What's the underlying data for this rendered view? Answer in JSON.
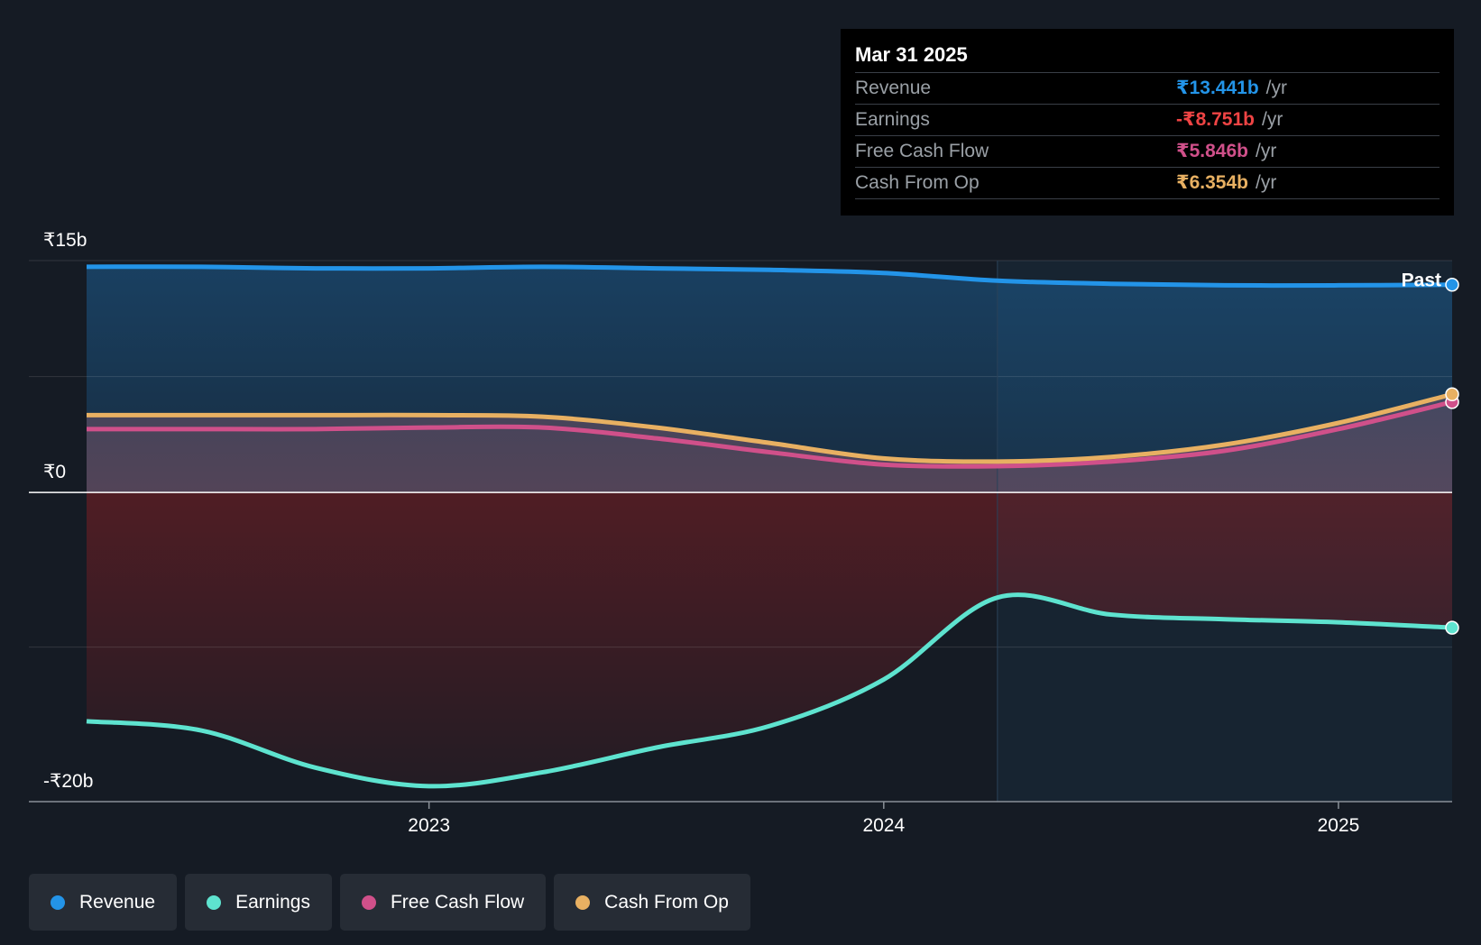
{
  "colors": {
    "revenue": "#2394e8",
    "earnings": "#5ee3cf",
    "fcf": "#d0508a",
    "cfo": "#e8b062",
    "negative": "#ef4444",
    "background": "#151b24"
  },
  "tooltip": {
    "date": "Mar 31 2025",
    "rows": [
      {
        "label": "Revenue",
        "value": "₹13.441b",
        "unit": "/yr"
      },
      {
        "label": "Earnings",
        "value": "-₹8.751b",
        "unit": "/yr"
      },
      {
        "label": "Free Cash Flow",
        "value": "₹5.846b",
        "unit": "/yr"
      },
      {
        "label": "Cash From Op",
        "value": "₹6.354b",
        "unit": "/yr"
      }
    ]
  },
  "past_label": "Past",
  "legend": [
    {
      "label": "Revenue",
      "icon": "revenue-dot"
    },
    {
      "label": "Earnings",
      "icon": "earnings-dot"
    },
    {
      "label": "Free Cash Flow",
      "icon": "fcf-dot"
    },
    {
      "label": "Cash From Op",
      "icon": "cfo-dot"
    }
  ],
  "chart_data": {
    "type": "area",
    "title": "",
    "xlabel": "",
    "ylabel": "",
    "y_unit": "₹b",
    "ylim": [
      -20,
      15
    ],
    "y_ticks": [
      {
        "value": 15,
        "label": "₹15b"
      },
      {
        "value": 0,
        "label": "₹0"
      },
      {
        "value": -20,
        "label": "-₹20b"
      }
    ],
    "x_ticks": [
      {
        "value": 2023.0,
        "label": "2023"
      },
      {
        "value": 2024.0,
        "label": "2024"
      },
      {
        "value": 2025.0,
        "label": "2025"
      }
    ],
    "xlim": [
      2022.12,
      2025.25
    ],
    "highlight_from": 2024.25,
    "x": [
      2022.25,
      2022.5,
      2022.75,
      2023.0,
      2023.25,
      2023.5,
      2023.75,
      2024.0,
      2024.25,
      2024.5,
      2024.75,
      2025.0,
      2025.25
    ],
    "series": [
      {
        "name": "Revenue",
        "key": "revenue",
        "values": [
          14.6,
          14.6,
          14.5,
          14.5,
          14.6,
          14.5,
          14.4,
          14.2,
          13.7,
          13.5,
          13.4,
          13.4,
          13.44
        ]
      },
      {
        "name": "Earnings",
        "key": "earnings",
        "values": [
          -14.8,
          -15.4,
          -17.8,
          -19.0,
          -18.1,
          -16.5,
          -15.1,
          -12.1,
          -6.8,
          -7.9,
          -8.2,
          -8.4,
          -8.75
        ]
      },
      {
        "name": "Free Cash Flow",
        "key": "fcf",
        "values": [
          4.1,
          4.1,
          4.1,
          4.2,
          4.2,
          3.5,
          2.6,
          1.8,
          1.7,
          2.0,
          2.7,
          4.1,
          5.85
        ]
      },
      {
        "name": "Cash From Op",
        "key": "cfo",
        "values": [
          5.0,
          5.0,
          5.0,
          5.0,
          4.9,
          4.2,
          3.2,
          2.2,
          2.0,
          2.3,
          3.1,
          4.5,
          6.35
        ]
      }
    ]
  }
}
